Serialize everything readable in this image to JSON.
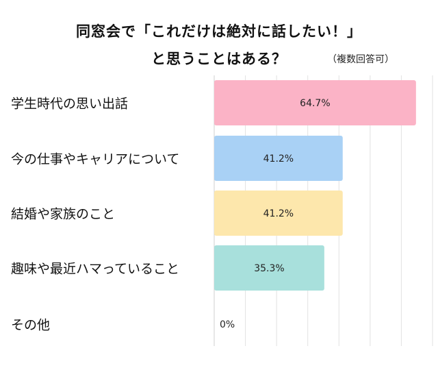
{
  "chart_data": {
    "type": "bar",
    "orientation": "horizontal",
    "title_line1": "同窓会で「これだけは絶対に話したい！」",
    "title_line2": "と思うことはある？",
    "note": "（複数回答可）",
    "categories": [
      "学生時代の思い出話",
      "今の仕事やキャリアについて",
      "結婚や家族のこと",
      "趣味や最近ハマっていること",
      "その他"
    ],
    "values": [
      64.7,
      41.2,
      41.2,
      35.3,
      0
    ],
    "value_labels": [
      "64.7%",
      "41.2%",
      "41.2%",
      "35.3%",
      "0%"
    ],
    "colors": [
      "#fbb3c6",
      "#a9d1f5",
      "#fde7ac",
      "#a8e0dc",
      "#cccccc"
    ],
    "xlim": [
      0,
      70
    ],
    "grid": true
  }
}
